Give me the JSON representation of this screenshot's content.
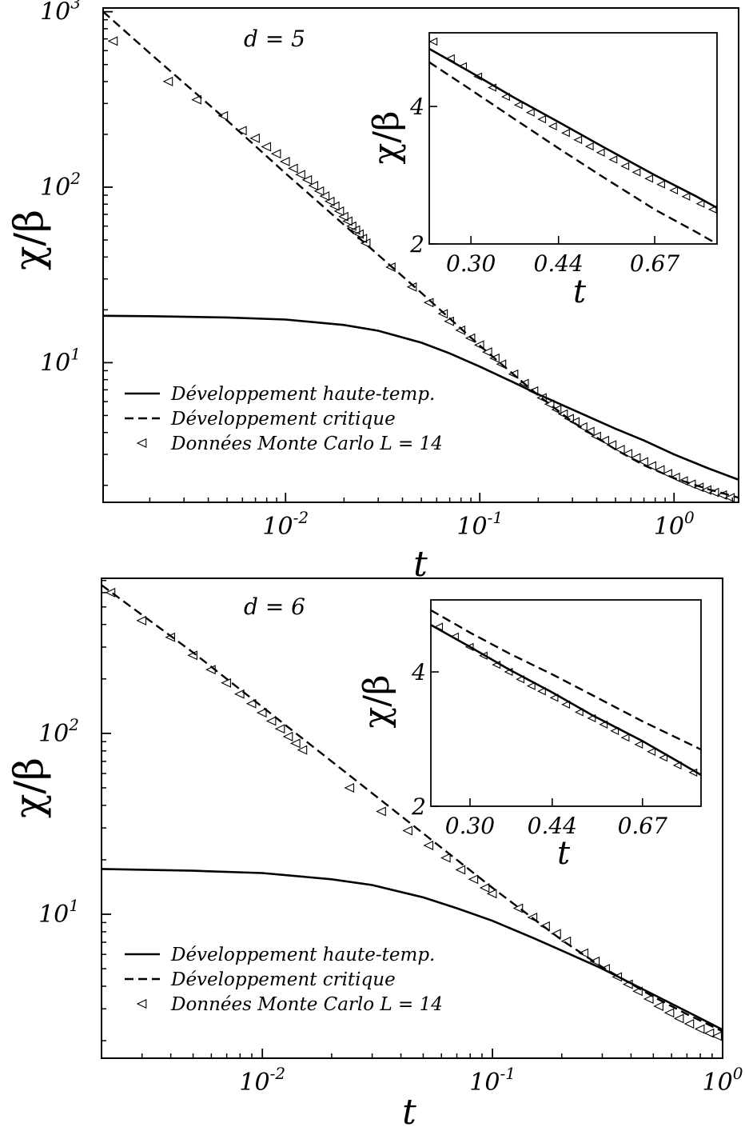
{
  "figure": {
    "panels": [
      "top",
      "bottom"
    ]
  },
  "chart_data": [
    {
      "type": "line",
      "annotation": "d = 5",
      "xlabel": "t",
      "ylabel": "χ/β",
      "xscale": "log",
      "yscale": "log",
      "xlim": [
        0.00115,
        2.15
      ],
      "ylim": [
        1.6,
        1050
      ],
      "x_ticks": [
        {
          "value": 0.01,
          "base": "10",
          "exp": "-2"
        },
        {
          "value": 0.1,
          "base": "10",
          "exp": "-1"
        },
        {
          "value": 1,
          "base": "10",
          "exp": "0"
        }
      ],
      "y_ticks": [
        {
          "value": 10,
          "base": "10",
          "exp": "1"
        },
        {
          "value": 100,
          "base": "10",
          "exp": "2"
        },
        {
          "value": 1000,
          "base": "10",
          "exp": "3"
        }
      ],
      "legend_position": "bottom-left",
      "legend": {
        "solid": "Développement haute-temp.",
        "dashed": "Développement critique",
        "markers": "Données Monte Carlo L = 14"
      },
      "series": [
        {
          "style": "solid",
          "x": [
            0.00115,
            0.002,
            0.005,
            0.01,
            0.02,
            0.03,
            0.05,
            0.07,
            0.1,
            0.15,
            0.2,
            0.3,
            0.5,
            0.7,
            1.0,
            1.5,
            2.15
          ],
          "y": [
            18.5,
            18.4,
            18.1,
            17.6,
            16.4,
            15.2,
            13.0,
            11.3,
            9.5,
            7.7,
            6.6,
            5.4,
            4.2,
            3.6,
            3.0,
            2.5,
            2.15
          ]
        },
        {
          "style": "dashed",
          "x": [
            0.00115,
            0.002,
            0.005,
            0.01,
            0.02,
            0.05,
            0.1,
            0.2,
            0.3,
            0.5,
            0.7,
            1.0,
            1.5,
            2.15
          ],
          "y": [
            1000,
            580,
            240,
            120,
            61,
            25,
            12.5,
            6.5,
            4.6,
            3.2,
            2.6,
            2.2,
            1.9,
            1.7
          ]
        },
        {
          "style": "markers",
          "x": [
            0.0013,
            0.0025,
            0.0035,
            0.0048,
            0.006,
            0.007,
            0.008,
            0.009,
            0.01,
            0.011,
            0.012,
            0.013,
            0.014,
            0.015,
            0.016,
            0.017,
            0.018,
            0.019,
            0.02,
            0.021,
            0.022,
            0.023,
            0.024,
            0.025,
            0.026,
            0.035,
            0.045,
            0.055,
            0.065,
            0.07,
            0.08,
            0.09,
            0.1,
            0.11,
            0.12,
            0.13,
            0.15,
            0.17,
            0.19,
            0.21,
            0.23,
            0.25,
            0.27,
            0.29,
            0.31,
            0.34,
            0.37,
            0.4,
            0.44,
            0.48,
            0.53,
            0.58,
            0.64,
            0.7,
            0.77,
            0.85,
            0.93,
            1.02,
            1.12,
            1.23,
            1.35,
            1.48,
            1.62,
            1.78,
            1.95
          ],
          "y": [
            680,
            400,
            315,
            255,
            210,
            190,
            170,
            155,
            140,
            128,
            118,
            110,
            102,
            95,
            89,
            83,
            78,
            73,
            68,
            64,
            60,
            57,
            54,
            51,
            48,
            35,
            27,
            22,
            19,
            17.2,
            15.3,
            13.8,
            12.6,
            11.5,
            10.6,
            9.8,
            8.6,
            7.6,
            6.9,
            6.3,
            5.8,
            5.4,
            5.1,
            4.8,
            4.6,
            4.3,
            4.05,
            3.8,
            3.6,
            3.4,
            3.2,
            3.03,
            2.87,
            2.72,
            2.58,
            2.45,
            2.33,
            2.22,
            2.12,
            2.03,
            1.95,
            1.88,
            1.82,
            1.76,
            1.7
          ]
        }
      ],
      "inset": {
        "xlabel": "t",
        "ylabel": "χ/β",
        "xscale": "log",
        "yscale": "log",
        "xlim": [
          0.25,
          0.88
        ],
        "ylim": [
          2.0,
          5.8
        ],
        "x_ticks": [
          {
            "value": 0.3,
            "label": "0.30"
          },
          {
            "value": 0.44,
            "label": "0.44"
          },
          {
            "value": 0.67,
            "label": "0.67"
          }
        ],
        "y_ticks": [
          {
            "value": 2,
            "label": "2"
          },
          {
            "value": 4,
            "label": "4"
          }
        ],
        "series": [
          {
            "style": "solid",
            "x": [
              0.25,
              0.3,
              0.36,
              0.44,
              0.53,
              0.67,
              0.8,
              0.88
            ],
            "y": [
              5.35,
              4.75,
              4.2,
              3.7,
              3.28,
              2.83,
              2.55,
              2.4
            ]
          },
          {
            "style": "dashed",
            "x": [
              0.25,
              0.3,
              0.36,
              0.44,
              0.53,
              0.67,
              0.8,
              0.88
            ],
            "y": [
              5.0,
              4.35,
              3.78,
              3.24,
              2.82,
              2.38,
              2.13,
              2.0
            ]
          },
          {
            "style": "markers",
            "x": [
              0.255,
              0.275,
              0.29,
              0.31,
              0.33,
              0.35,
              0.37,
              0.39,
              0.41,
              0.43,
              0.455,
              0.48,
              0.505,
              0.53,
              0.56,
              0.59,
              0.62,
              0.655,
              0.69,
              0.73,
              0.77,
              0.82,
              0.865
            ],
            "y": [
              5.55,
              5.1,
              4.9,
              4.65,
              4.4,
              4.2,
              4.03,
              3.88,
              3.75,
              3.62,
              3.5,
              3.38,
              3.27,
              3.17,
              3.06,
              2.96,
              2.87,
              2.78,
              2.7,
              2.62,
              2.54,
              2.45,
              2.38
            ]
          }
        ]
      }
    },
    {
      "type": "line",
      "annotation": "d = 6",
      "xlabel": "t",
      "ylabel": "χ/β",
      "xscale": "log",
      "yscale": "log",
      "xlim": [
        0.002,
        1.0
      ],
      "ylim": [
        1.6,
        720
      ],
      "x_ticks": [
        {
          "value": 0.01,
          "base": "10",
          "exp": "-2"
        },
        {
          "value": 0.1,
          "base": "10",
          "exp": "-1"
        },
        {
          "value": 1,
          "base": "10",
          "exp": "0"
        }
      ],
      "y_ticks": [
        {
          "value": 10,
          "base": "10",
          "exp": "1"
        },
        {
          "value": 100,
          "base": "10",
          "exp": "2"
        }
      ],
      "legend_position": "bottom-left",
      "legend": {
        "solid": "Développement haute-temp.",
        "dashed": "Développement critique",
        "markers": "Données Monte Carlo L = 14"
      },
      "series": [
        {
          "style": "solid",
          "x": [
            0.002,
            0.005,
            0.01,
            0.02,
            0.03,
            0.05,
            0.07,
            0.1,
            0.15,
            0.2,
            0.3,
            0.5,
            0.7,
            1.0
          ],
          "y": [
            17.8,
            17.4,
            16.9,
            15.6,
            14.5,
            12.4,
            10.8,
            9.2,
            7.4,
            6.3,
            5.0,
            3.6,
            2.9,
            2.3
          ]
        },
        {
          "style": "dashed",
          "x": [
            0.002,
            0.005,
            0.01,
            0.02,
            0.05,
            0.1,
            0.2,
            0.3,
            0.5,
            0.7,
            1.0
          ],
          "y": [
            660,
            280,
            140,
            70,
            28,
            14,
            7.2,
            5.1,
            3.5,
            2.8,
            2.25
          ]
        },
        {
          "style": "markers",
          "x": [
            0.0022,
            0.003,
            0.004,
            0.005,
            0.006,
            0.007,
            0.008,
            0.009,
            0.01,
            0.011,
            0.012,
            0.013,
            0.014,
            0.015,
            0.024,
            0.033,
            0.043,
            0.053,
            0.063,
            0.073,
            0.083,
            0.093,
            0.1,
            0.13,
            0.15,
            0.17,
            0.19,
            0.21,
            0.25,
            0.28,
            0.31,
            0.35,
            0.39,
            0.43,
            0.48,
            0.53,
            0.59,
            0.65,
            0.72,
            0.8,
            0.88,
            0.95
          ],
          "y": [
            600,
            420,
            340,
            270,
            225,
            190,
            165,
            146,
            130,
            117,
            106,
            96,
            88,
            81,
            50,
            37,
            29,
            24,
            20.5,
            17.6,
            15.6,
            14.0,
            13.0,
            10.8,
            9.6,
            8.6,
            7.8,
            7.1,
            6.1,
            5.5,
            5.0,
            4.5,
            4.1,
            3.75,
            3.4,
            3.1,
            2.85,
            2.65,
            2.48,
            2.32,
            2.2,
            2.12
          ]
        }
      ],
      "inset": {
        "xlabel": "t",
        "ylabel": "χ/β",
        "xscale": "log",
        "yscale": "log",
        "xlim": [
          0.25,
          0.88
        ],
        "ylim": [
          2.0,
          5.8
        ],
        "x_ticks": [
          {
            "value": 0.3,
            "label": "0.30"
          },
          {
            "value": 0.44,
            "label": "0.44"
          },
          {
            "value": 0.67,
            "label": "0.67"
          }
        ],
        "y_ticks": [
          {
            "value": 2,
            "label": "2"
          },
          {
            "value": 4,
            "label": "4"
          }
        ],
        "series": [
          {
            "style": "solid",
            "x": [
              0.25,
              0.3,
              0.36,
              0.44,
              0.53,
              0.67,
              0.8,
              0.88
            ],
            "y": [
              5.1,
              4.55,
              4.05,
              3.6,
              3.2,
              2.8,
              2.5,
              2.35
            ]
          },
          {
            "style": "dashed",
            "x": [
              0.25,
              0.3,
              0.36,
              0.44,
              0.53,
              0.67,
              0.8,
              0.88
            ],
            "y": [
              5.5,
              4.9,
              4.4,
              3.95,
              3.55,
              3.1,
              2.82,
              2.68
            ]
          },
          {
            "style": "markers",
            "x": [
              0.26,
              0.28,
              0.3,
              0.32,
              0.34,
              0.36,
              0.38,
              0.4,
              0.42,
              0.445,
              0.47,
              0.5,
              0.53,
              0.56,
              0.59,
              0.62,
              0.66,
              0.7,
              0.74,
              0.79,
              0.85
            ],
            "y": [
              5.05,
              4.8,
              4.55,
              4.35,
              4.15,
              4.0,
              3.85,
              3.72,
              3.62,
              3.5,
              3.38,
              3.25,
              3.15,
              3.05,
              2.95,
              2.85,
              2.75,
              2.65,
              2.57,
              2.47,
              2.38
            ]
          }
        ]
      }
    }
  ]
}
